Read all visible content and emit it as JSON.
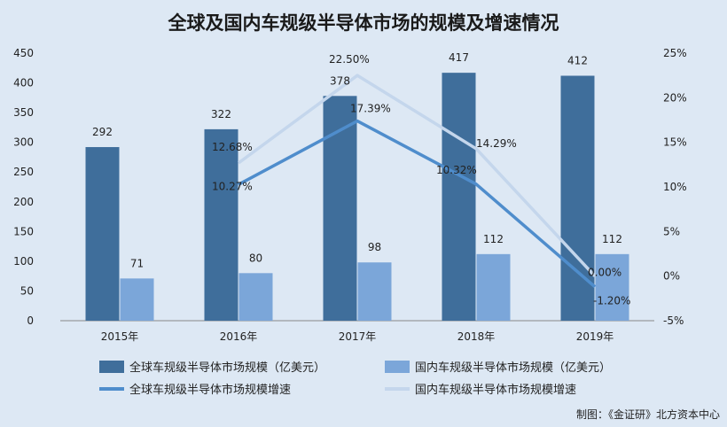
{
  "title": "全球及国内车规级半导体市场的规模及增速情况",
  "source": "制图：《金证研》北方资本中心",
  "colors": {
    "global_bar": "#3f6e9b",
    "domestic_bar": "#7ba6d9",
    "global_line": "#4f8dcc",
    "domestic_line": "#c4d6ec"
  },
  "chart_data": {
    "type": "bar",
    "categories": [
      "2015年",
      "2016年",
      "2017年",
      "2018年",
      "2019年"
    ],
    "series": [
      {
        "name": "全球车规级半导体市场规模（亿美元）",
        "type": "bar",
        "axis": "left",
        "values": [
          292,
          322,
          378,
          417,
          412
        ],
        "labels": [
          "292",
          "322",
          "378",
          "417",
          "412"
        ]
      },
      {
        "name": "国内车规级半导体市场规模（亿美元）",
        "type": "bar",
        "axis": "left",
        "values": [
          71,
          80,
          98,
          112,
          112
        ],
        "labels": [
          "71",
          "80",
          "98",
          "112",
          "112"
        ]
      },
      {
        "name": "全球车规级半导体市场规模增速",
        "type": "line",
        "axis": "right",
        "x": [
          "2016年",
          "2017年",
          "2018年",
          "2019年"
        ],
        "values": [
          10.27,
          17.39,
          10.32,
          -1.2
        ],
        "labels": [
          "10.27%",
          "17.39%",
          "10.32%",
          "-1.20%"
        ]
      },
      {
        "name": "国内车规级半导体市场规模增速",
        "type": "line",
        "axis": "right",
        "x": [
          "2016年",
          "2017年",
          "2018年",
          "2019年"
        ],
        "values": [
          12.68,
          22.5,
          14.29,
          0.0
        ],
        "labels": [
          "12.68%",
          "22.50%",
          "14.29%",
          "0.00%"
        ]
      }
    ],
    "y_left": {
      "lim": [
        0,
        450
      ],
      "ticks": [
        "0",
        "50",
        "100",
        "150",
        "200",
        "250",
        "300",
        "350",
        "400",
        "450"
      ]
    },
    "y_right": {
      "lim": [
        -5,
        25
      ],
      "ticks": [
        "-5%",
        "0%",
        "5%",
        "10%",
        "15%",
        "20%",
        "25%"
      ]
    },
    "grid": false,
    "legend_position": "bottom"
  }
}
